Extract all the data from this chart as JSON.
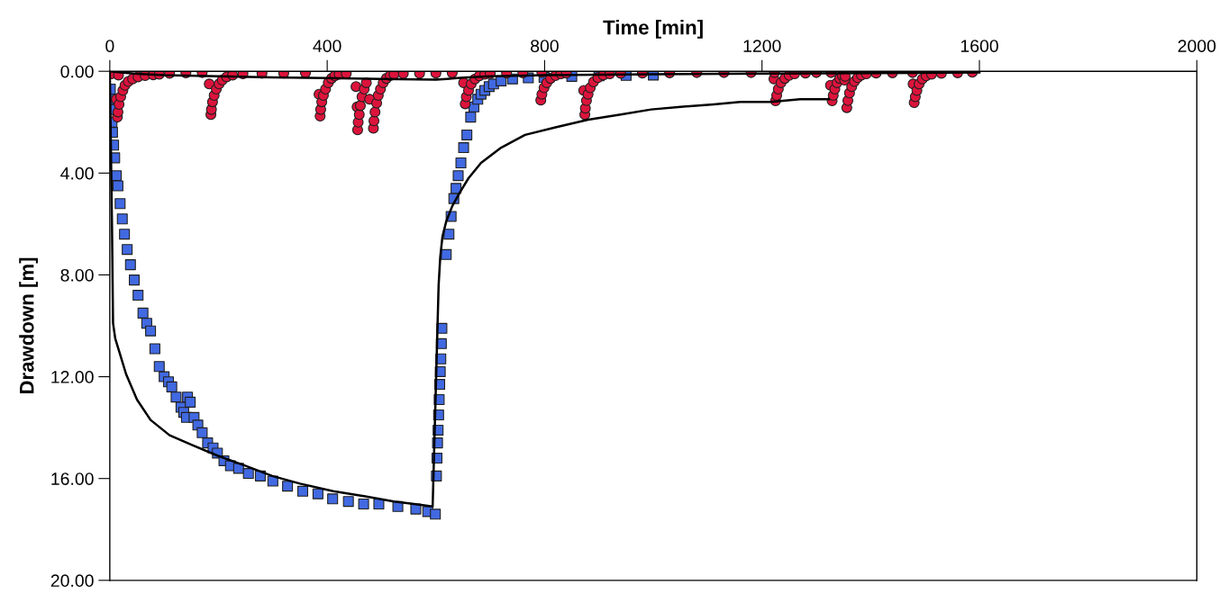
{
  "chart_data": {
    "type": "scatter",
    "xlabel": "Time [min]",
    "ylabel": "Drawdown [m]",
    "xlim": [
      0,
      2000
    ],
    "xticks": [
      0,
      400,
      800,
      1200,
      1600,
      2000
    ],
    "ylim": [
      20,
      0
    ],
    "yticks": [
      {
        "value": 0,
        "label": "0.00"
      },
      {
        "value": 4,
        "label": "4.00"
      },
      {
        "value": 8,
        "label": "8.00"
      },
      {
        "value": 12,
        "label": "12.00"
      },
      {
        "value": 16,
        "label": "16.00"
      },
      {
        "value": 20,
        "label": "20.00"
      }
    ],
    "series": [
      {
        "type": "line",
        "marker": "none",
        "line_style": "solid",
        "color": "#000000",
        "x": [
          0,
          2,
          4,
          6,
          10,
          20,
          30,
          50,
          75,
          110,
          153,
          198,
          250,
          299,
          350,
          411,
          470,
          523,
          560,
          594,
          605,
          608,
          612,
          619,
          630,
          643,
          660,
          683,
          720,
          764,
          820,
          880,
          940,
          996,
          1050,
          1111,
          1160,
          1216,
          1270,
          1323
        ],
        "values": [
          0,
          3,
          6,
          9.9,
          10.5,
          11.2,
          11.9,
          12.9,
          13.7,
          14.3,
          14.7,
          15.1,
          15.5,
          15.9,
          16.2,
          16.5,
          16.7,
          16.9,
          17.0,
          17.1,
          8.4,
          7.3,
          6.5,
          5.9,
          5.3,
          4.8,
          4.2,
          3.6,
          3.0,
          2.5,
          2.2,
          1.9,
          1.7,
          1.5,
          1.4,
          1.3,
          1.2,
          1.2,
          1.1,
          1.1
        ]
      },
      {
        "type": "line",
        "marker": "none",
        "line_style": "solid",
        "color": "#000000",
        "x": [
          0,
          20,
          50,
          100,
          200,
          300,
          400,
          500,
          600,
          620,
          650,
          700,
          800,
          1000,
          1200,
          1400,
          1600
        ],
        "values": [
          0,
          0.05,
          0.1,
          0.15,
          0.2,
          0.24,
          0.27,
          0.3,
          0.33,
          0.3,
          0.25,
          0.2,
          0.15,
          0.12,
          0.09,
          0.07,
          0.05
        ]
      },
      {
        "marker": "square",
        "color": "#4169e1",
        "x": [
          1,
          2,
          3,
          4,
          5,
          7,
          9,
          12,
          15,
          19,
          23,
          27,
          32,
          38,
          45,
          52,
          61,
          68,
          75,
          83,
          91,
          100,
          108,
          114,
          122,
          131,
          136,
          141,
          143,
          148,
          155,
          162,
          170,
          180,
          190,
          198,
          210,
          222,
          237,
          255,
          277,
          300,
          327,
          355,
          383,
          410,
          439,
          467,
          495,
          530,
          563,
          585,
          599,
          601,
          602,
          603,
          604,
          605,
          606,
          607,
          608,
          609,
          610,
          611,
          619,
          624,
          628,
          633,
          637,
          641,
          646,
          651,
          657,
          664,
          670,
          677,
          683,
          690,
          698,
          706,
          720,
          741,
          770,
          799,
          850,
          900,
          950,
          1000
        ],
        "values": [
          0.7,
          1.1,
          1.5,
          2.0,
          2.4,
          2.9,
          3.4,
          4.1,
          4.5,
          5.2,
          5.8,
          6.4,
          7.0,
          7.6,
          8.2,
          8.8,
          9.5,
          9.9,
          10.2,
          10.9,
          11.6,
          12.0,
          12.2,
          12.4,
          12.8,
          13.2,
          13.4,
          13.6,
          12.8,
          13.0,
          13.6,
          13.9,
          14.2,
          14.6,
          14.8,
          15.0,
          15.3,
          15.5,
          15.6,
          15.8,
          15.9,
          16.1,
          16.3,
          16.5,
          16.6,
          16.8,
          16.9,
          17.0,
          17.0,
          17.1,
          17.2,
          17.3,
          17.4,
          15.9,
          15.2,
          14.6,
          14.1,
          13.5,
          12.9,
          12.3,
          11.8,
          11.3,
          10.7,
          10.1,
          7.2,
          6.4,
          5.7,
          5.0,
          4.6,
          4.1,
          3.6,
          3.0,
          2.5,
          1.8,
          1.4,
          1.1,
          0.9,
          0.75,
          0.6,
          0.5,
          0.38,
          0.3,
          0.26,
          0.24,
          0.2,
          0.18,
          0.16,
          0.15
        ]
      },
      {
        "marker": "circle",
        "color": "#dc143c",
        "x": [
          3,
          12,
          16,
          14,
          15,
          17,
          20,
          24,
          28,
          34,
          42,
          52,
          65,
          80,
          91,
          110,
          140,
          170,
          183,
          186,
          187,
          189,
          192,
          196,
          201,
          207,
          215,
          226,
          245,
          280,
          320,
          360,
          385,
          387,
          388,
          390,
          393,
          397,
          402,
          408,
          414,
          422,
          435,
          453,
          455,
          456,
          457,
          459,
          461,
          464,
          468,
          472,
          478,
          485,
          486,
          488,
          491,
          494,
          498,
          503,
          509,
          516,
          523,
          540,
          570,
          600,
          630,
          651,
          654,
          656,
          660,
          665,
          672,
          680,
          690,
          700,
          730,
          760,
          795,
          793,
          795,
          799,
          804,
          811,
          820,
          830,
          840,
          872,
          874,
          875,
          877,
          880,
          884,
          890,
          898,
          908,
          920,
          940,
          980,
          1030,
          1080,
          1130,
          1180,
          1222,
          1223,
          1225,
          1227,
          1230,
          1235,
          1242,
          1250,
          1260,
          1280,
          1300,
          1326,
          1327,
          1329,
          1331,
          1334,
          1338,
          1343,
          1348,
          1352,
          1353,
          1356,
          1358,
          1361,
          1365,
          1370,
          1376,
          1383,
          1392,
          1410,
          1440,
          1477,
          1478,
          1480,
          1482,
          1485,
          1489,
          1495,
          1502,
          1512,
          1530,
          1560,
          1587
        ],
        "values": [
          0.1,
          1.1,
          0.15,
          1.8,
          1.6,
          1.3,
          1.0,
          0.75,
          0.55,
          0.4,
          0.3,
          0.22,
          0.17,
          0.14,
          0.12,
          0.08,
          0.06,
          0.05,
          0.5,
          1.7,
          1.5,
          1.2,
          0.95,
          0.7,
          0.5,
          0.35,
          0.22,
          0.15,
          0.1,
          0.08,
          0.07,
          0.06,
          0.9,
          1.76,
          1.5,
          1.2,
          0.95,
          0.7,
          0.45,
          0.28,
          0.18,
          0.12,
          0.09,
          0.6,
          1.4,
          2.3,
          2.0,
          1.7,
          1.35,
          1.0,
          0.7,
          0.45,
          1.1,
          2.24,
          1.95,
          1.6,
          1.25,
          0.95,
          0.7,
          0.45,
          0.28,
          0.17,
          0.12,
          0.09,
          0.08,
          0.07,
          0.06,
          0.45,
          1.28,
          1.0,
          0.75,
          0.5,
          0.3,
          0.18,
          0.12,
          0.09,
          0.07,
          0.06,
          0.05,
          1.13,
          0.9,
          0.65,
          0.45,
          0.28,
          0.17,
          0.1,
          0.07,
          0.75,
          1.7,
          1.45,
          1.15,
          0.9,
          0.65,
          0.42,
          0.25,
          0.15,
          0.1,
          0.08,
          0.07,
          0.06,
          0.05,
          0.05,
          0.05,
          0.3,
          0.05,
          1.16,
          0.95,
          0.7,
          0.45,
          0.28,
          0.16,
          0.1,
          0.07,
          0.05,
          0.55,
          0.05,
          1.16,
          0.95,
          0.7,
          0.45,
          0.28,
          0.18,
          0.35,
          0.2,
          1.43,
          1.15,
          0.85,
          0.6,
          0.4,
          0.25,
          0.15,
          0.1,
          0.07,
          0.06,
          0.05,
          0.5,
          1.23,
          1.0,
          0.75,
          0.5,
          0.3,
          0.18,
          0.12,
          0.08,
          0.06,
          0.04
        ]
      }
    ]
  }
}
